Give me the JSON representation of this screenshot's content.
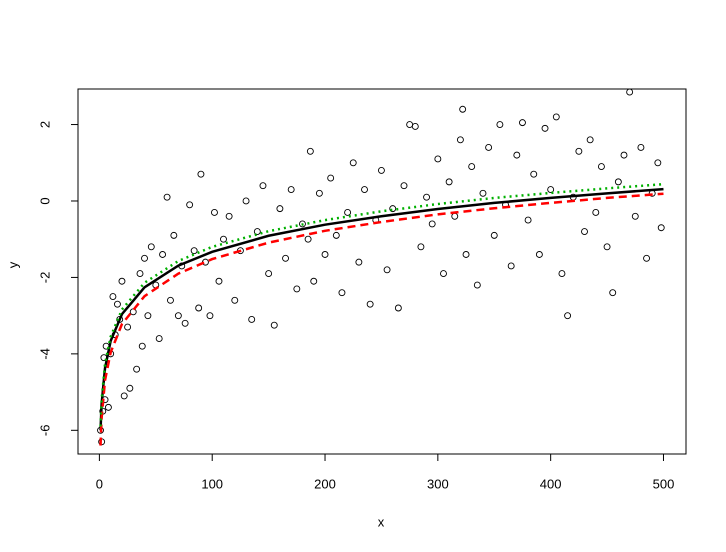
{
  "chart_data": {
    "type": "scatter",
    "xlabel": "x",
    "ylabel": "y",
    "xlim": [
      -18.96,
      519.96
    ],
    "ylim": [
      -6.62,
      2.93
    ],
    "xticks": [
      0,
      100,
      200,
      300,
      400,
      500
    ],
    "yticks": [
      -6,
      -4,
      -2,
      0,
      2
    ],
    "points": {
      "color": "#000000",
      "x": [
        1,
        2,
        3,
        4,
        5,
        6,
        8,
        10,
        12,
        14,
        16,
        18,
        20,
        22,
        25,
        27,
        30,
        33,
        36,
        38,
        40,
        43,
        46,
        50,
        53,
        56,
        60,
        63,
        66,
        70,
        73,
        76,
        80,
        84,
        88,
        90,
        94,
        98,
        102,
        106,
        110,
        115,
        120,
        125,
        130,
        135,
        140,
        145,
        150,
        155,
        160,
        165,
        170,
        175,
        180,
        185,
        187,
        190,
        195,
        200,
        205,
        210,
        215,
        220,
        225,
        230,
        235,
        240,
        245,
        250,
        255,
        260,
        265,
        270,
        275,
        280,
        285,
        290,
        295,
        300,
        305,
        310,
        315,
        320,
        322,
        325,
        330,
        335,
        340,
        345,
        350,
        355,
        360,
        365,
        370,
        375,
        380,
        385,
        390,
        395,
        400,
        405,
        410,
        415,
        420,
        425,
        430,
        435,
        440,
        445,
        450,
        455,
        460,
        465,
        470,
        475,
        480,
        485,
        490,
        495,
        498
      ],
      "y": [
        -6.0,
        -6.3,
        -5.5,
        -4.1,
        -5.2,
        -3.8,
        -5.4,
        -4.0,
        -2.5,
        -3.5,
        -2.7,
        -3.1,
        -2.1,
        -5.1,
        -3.3,
        -4.9,
        -2.9,
        -4.4,
        -1.9,
        -3.8,
        -1.5,
        -3.0,
        -1.2,
        -2.2,
        -3.6,
        -1.4,
        0.1,
        -2.6,
        -0.9,
        -3.0,
        -1.7,
        -3.2,
        -0.1,
        -1.3,
        -2.8,
        0.7,
        -1.6,
        -3.0,
        -0.3,
        -2.1,
        -1.0,
        -0.4,
        -2.6,
        -1.3,
        0.0,
        -3.1,
        -0.8,
        0.4,
        -1.9,
        -3.25,
        -0.2,
        -1.5,
        0.3,
        -2.3,
        -0.6,
        -1.0,
        1.3,
        -2.1,
        0.2,
        -1.4,
        0.6,
        -0.9,
        -2.4,
        -0.3,
        1.0,
        -1.6,
        0.3,
        -2.7,
        -0.5,
        0.8,
        -1.8,
        -0.2,
        -2.8,
        0.4,
        2.0,
        1.95,
        -1.2,
        0.1,
        -0.6,
        1.1,
        -1.9,
        0.5,
        -0.4,
        1.6,
        2.4,
        -1.4,
        0.9,
        -2.2,
        0.2,
        1.4,
        -0.9,
        2.0,
        -0.1,
        -1.7,
        1.2,
        2.05,
        -0.5,
        0.7,
        -1.4,
        1.9,
        0.3,
        2.2,
        -1.9,
        -3.0,
        0.1,
        1.3,
        -0.8,
        1.6,
        -0.3,
        0.9,
        -1.2,
        -2.4,
        0.5,
        1.2,
        2.85,
        -0.4,
        1.4,
        -1.5,
        0.2,
        1.0,
        -0.7
      ]
    },
    "series": [
      {
        "color": "#000000",
        "style": "solid",
        "x": [
          1,
          2,
          5,
          10,
          20,
          40,
          70,
          100,
          150,
          200,
          250,
          300,
          350,
          400,
          450,
          500
        ],
        "values": [
          -6,
          -5.3,
          -4.37,
          -3.66,
          -2.96,
          -2.26,
          -1.69,
          -1.33,
          -0.91,
          -0.62,
          -0.4,
          -0.21,
          -0.05,
          0.08,
          0.2,
          0.31
        ]
      },
      {
        "color": "#ff0000",
        "style": "dashed",
        "x": [
          1,
          2,
          5,
          10,
          20,
          40,
          70,
          100,
          150,
          200,
          250,
          300,
          350,
          400,
          450,
          500
        ],
        "values": [
          -6.4,
          -5.67,
          -4.69,
          -3.96,
          -3.22,
          -2.49,
          -1.9,
          -1.52,
          -1.09,
          -0.78,
          -0.55,
          -0.35,
          -0.19,
          -0.05,
          0.08,
          0.19
        ]
      },
      {
        "color": "#00b000",
        "style": "dotted",
        "x": [
          1,
          2,
          5,
          10,
          20,
          40,
          70,
          100,
          150,
          200,
          250,
          300,
          350,
          400,
          450,
          500
        ],
        "values": [
          -5.9,
          -5.19,
          -4.26,
          -3.55,
          -2.84,
          -2.14,
          -1.57,
          -1.2,
          -0.79,
          -0.5,
          -0.27,
          -0.08,
          0.08,
          0.21,
          0.33,
          0.44
        ]
      }
    ]
  }
}
